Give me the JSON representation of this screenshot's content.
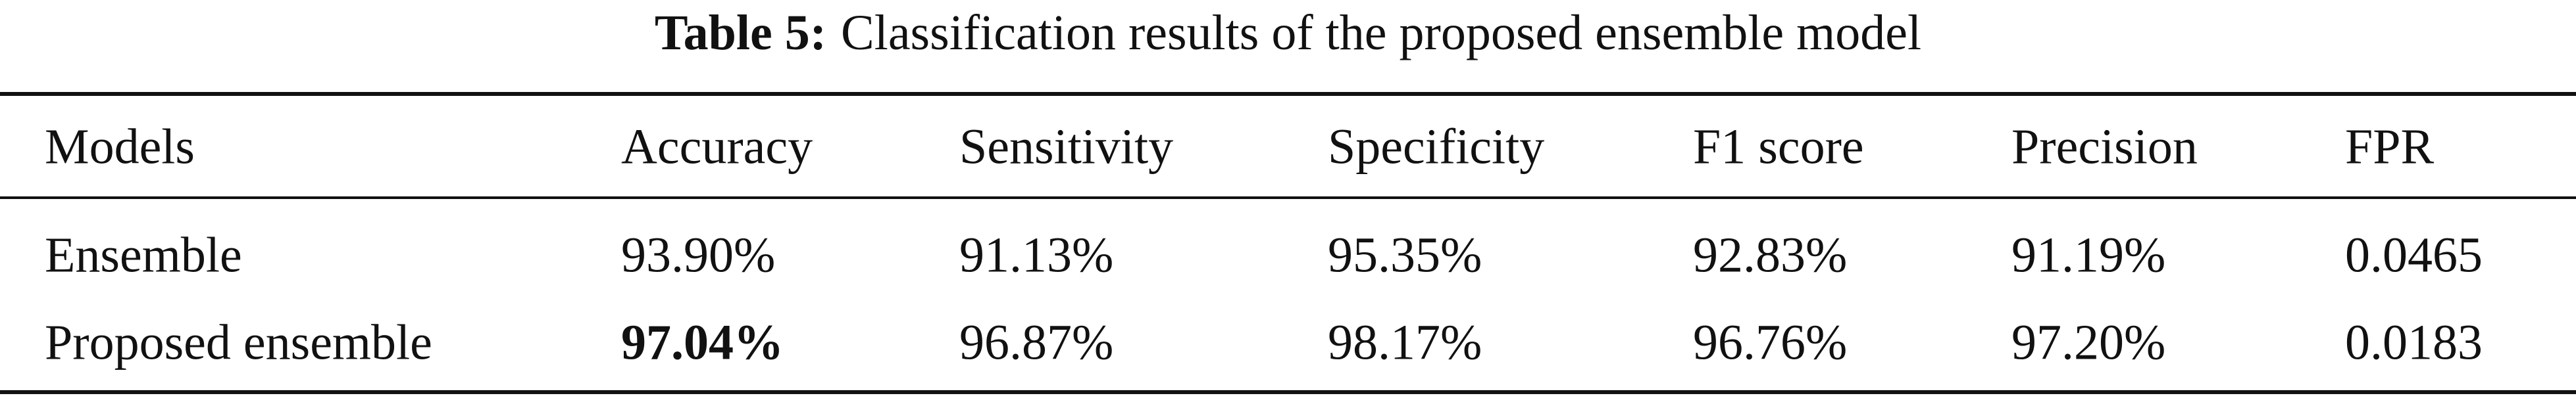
{
  "table": {
    "caption": {
      "label": "Table 5:",
      "text": "Classification results of the proposed ensemble model"
    },
    "header": [
      "Models",
      "Accuracy",
      "Sensitivity",
      "Specificity",
      "F1 score",
      "Precision",
      "FPR"
    ],
    "rows": [
      [
        "Ensemble",
        "93.90%",
        "91.13%",
        "95.35%",
        "92.83%",
        "91.19%",
        "0.0465"
      ],
      [
        "Proposed ensemble",
        "97.04%",
        "96.87%",
        "98.17%",
        "96.76%",
        "97.20%",
        "0.0183"
      ]
    ]
  }
}
